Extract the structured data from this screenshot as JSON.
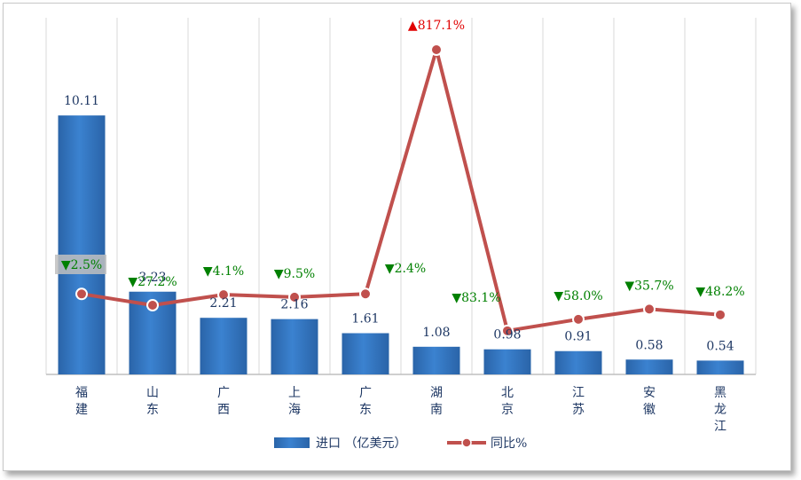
{
  "chart_data": {
    "type": "bar",
    "categories": [
      [
        "福",
        "建"
      ],
      [
        "山",
        "东"
      ],
      [
        "广",
        "西"
      ],
      [
        "上",
        "海"
      ],
      [
        "广",
        "东"
      ],
      [
        "湖",
        "南"
      ],
      [
        "北",
        "京"
      ],
      [
        "江",
        "苏"
      ],
      [
        "安",
        "徽"
      ],
      [
        "黑",
        "龙",
        "江"
      ]
    ],
    "series": [
      {
        "name": "进口 （亿美元）",
        "type": "bar",
        "values": [
          10.11,
          3.23,
          2.21,
          2.16,
          1.61,
          1.08,
          0.98,
          0.91,
          0.58,
          0.54
        ],
        "labels": [
          "10.11",
          "3.23",
          "2.21",
          "2.16",
          "1.61",
          "1.08",
          "0.98",
          "0.91",
          "0.58",
          "0.54"
        ]
      },
      {
        "name": "同比%",
        "type": "line",
        "values": [
          -2.5,
          -27.2,
          -4.1,
          -9.5,
          -2.4,
          817.1,
          -83.1,
          -58.0,
          -35.7,
          -48.2
        ],
        "labels": [
          "▼2.5%",
          "▼27.2%",
          "▼4.1%",
          "▼9.5%",
          "▼2.4%",
          "▲817.1%",
          "▼83.1%",
          "▼58.0%",
          "▼35.7%",
          "▼48.2%"
        ]
      }
    ],
    "legend_position": "bottom",
    "grid": "vertical",
    "colors": {
      "bar": "#2e75c6",
      "line": "#c0504d",
      "down": "#008000",
      "up": "#e00000"
    }
  }
}
